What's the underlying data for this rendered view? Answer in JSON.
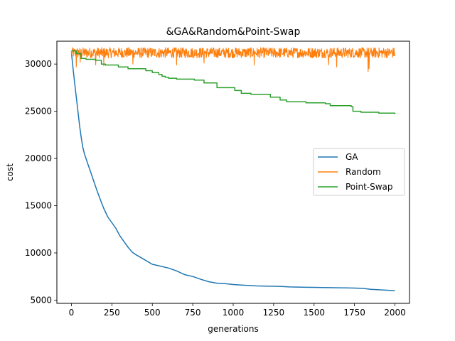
{
  "chart_data": {
    "type": "line",
    "title": "&GA&Random&Point-Swap",
    "xlabel": "generations",
    "ylabel": "cost",
    "xlim": [
      -90,
      2090
    ],
    "ylim": [
      4660,
      32420
    ],
    "xticks": [
      0,
      250,
      500,
      750,
      1000,
      1250,
      1500,
      1750,
      2000
    ],
    "yticks": [
      5000,
      10000,
      15000,
      20000,
      25000,
      30000
    ],
    "grid": false,
    "legend_position": "center-right",
    "series": [
      {
        "name": "GA",
        "color": "#1f77b4",
        "kind": "smooth",
        "x": [
          0,
          10,
          20,
          30,
          40,
          50,
          60,
          70,
          80,
          100,
          120,
          140,
          160,
          180,
          200,
          225,
          250,
          275,
          300,
          325,
          350,
          375,
          400,
          450,
          500,
          550,
          600,
          650,
          700,
          750,
          800,
          850,
          900,
          950,
          1000,
          1050,
          1100,
          1150,
          1200,
          1250,
          1300,
          1350,
          1400,
          1450,
          1500,
          1550,
          1600,
          1650,
          1700,
          1750,
          1800,
          1850,
          1900,
          1950,
          2000
        ],
        "y": [
          31200,
          29500,
          28000,
          26500,
          25000,
          23500,
          22300,
          21200,
          20500,
          19500,
          18500,
          17500,
          16500,
          15600,
          14700,
          13800,
          13200,
          12600,
          11800,
          11200,
          10600,
          10100,
          9800,
          9300,
          8800,
          8600,
          8400,
          8100,
          7700,
          7500,
          7200,
          6950,
          6800,
          6750,
          6650,
          6600,
          6550,
          6500,
          6480,
          6470,
          6450,
          6400,
          6380,
          6360,
          6350,
          6340,
          6320,
          6310,
          6300,
          6280,
          6250,
          6150,
          6100,
          6050,
          6000
        ]
      },
      {
        "name": "Random",
        "color": "#ff7f0e",
        "kind": "noisy",
        "x_start": 0,
        "x_end": 2000,
        "mean": 31200,
        "amplitude": 550,
        "dips": [
          [
            30,
            29700
          ],
          [
            55,
            30200
          ],
          [
            150,
            29900
          ],
          [
            200,
            29800
          ],
          [
            380,
            30000
          ],
          [
            650,
            29900
          ],
          [
            820,
            30100
          ],
          [
            1130,
            29900
          ],
          [
            1590,
            29900
          ],
          [
            1640,
            29700
          ],
          [
            1835,
            29200
          ],
          [
            1840,
            29500
          ]
        ]
      },
      {
        "name": "Point-Swap",
        "color": "#2ca02c",
        "kind": "step",
        "x": [
          0,
          30,
          60,
          90,
          150,
          185,
          210,
          290,
          350,
          460,
          500,
          540,
          560,
          580,
          600,
          620,
          650,
          760,
          820,
          900,
          1010,
          1050,
          1110,
          1230,
          1290,
          1330,
          1450,
          1570,
          1600,
          1730,
          1740,
          1790,
          1900,
          2000
        ],
        "y": [
          31400,
          31100,
          30600,
          30500,
          30400,
          30000,
          29900,
          29700,
          29500,
          29300,
          29100,
          28900,
          28700,
          28600,
          28500,
          28500,
          28400,
          28300,
          28000,
          27500,
          27200,
          26900,
          26800,
          26500,
          26200,
          26000,
          25900,
          25800,
          25600,
          25500,
          25000,
          24900,
          24800,
          24700
        ]
      }
    ]
  }
}
